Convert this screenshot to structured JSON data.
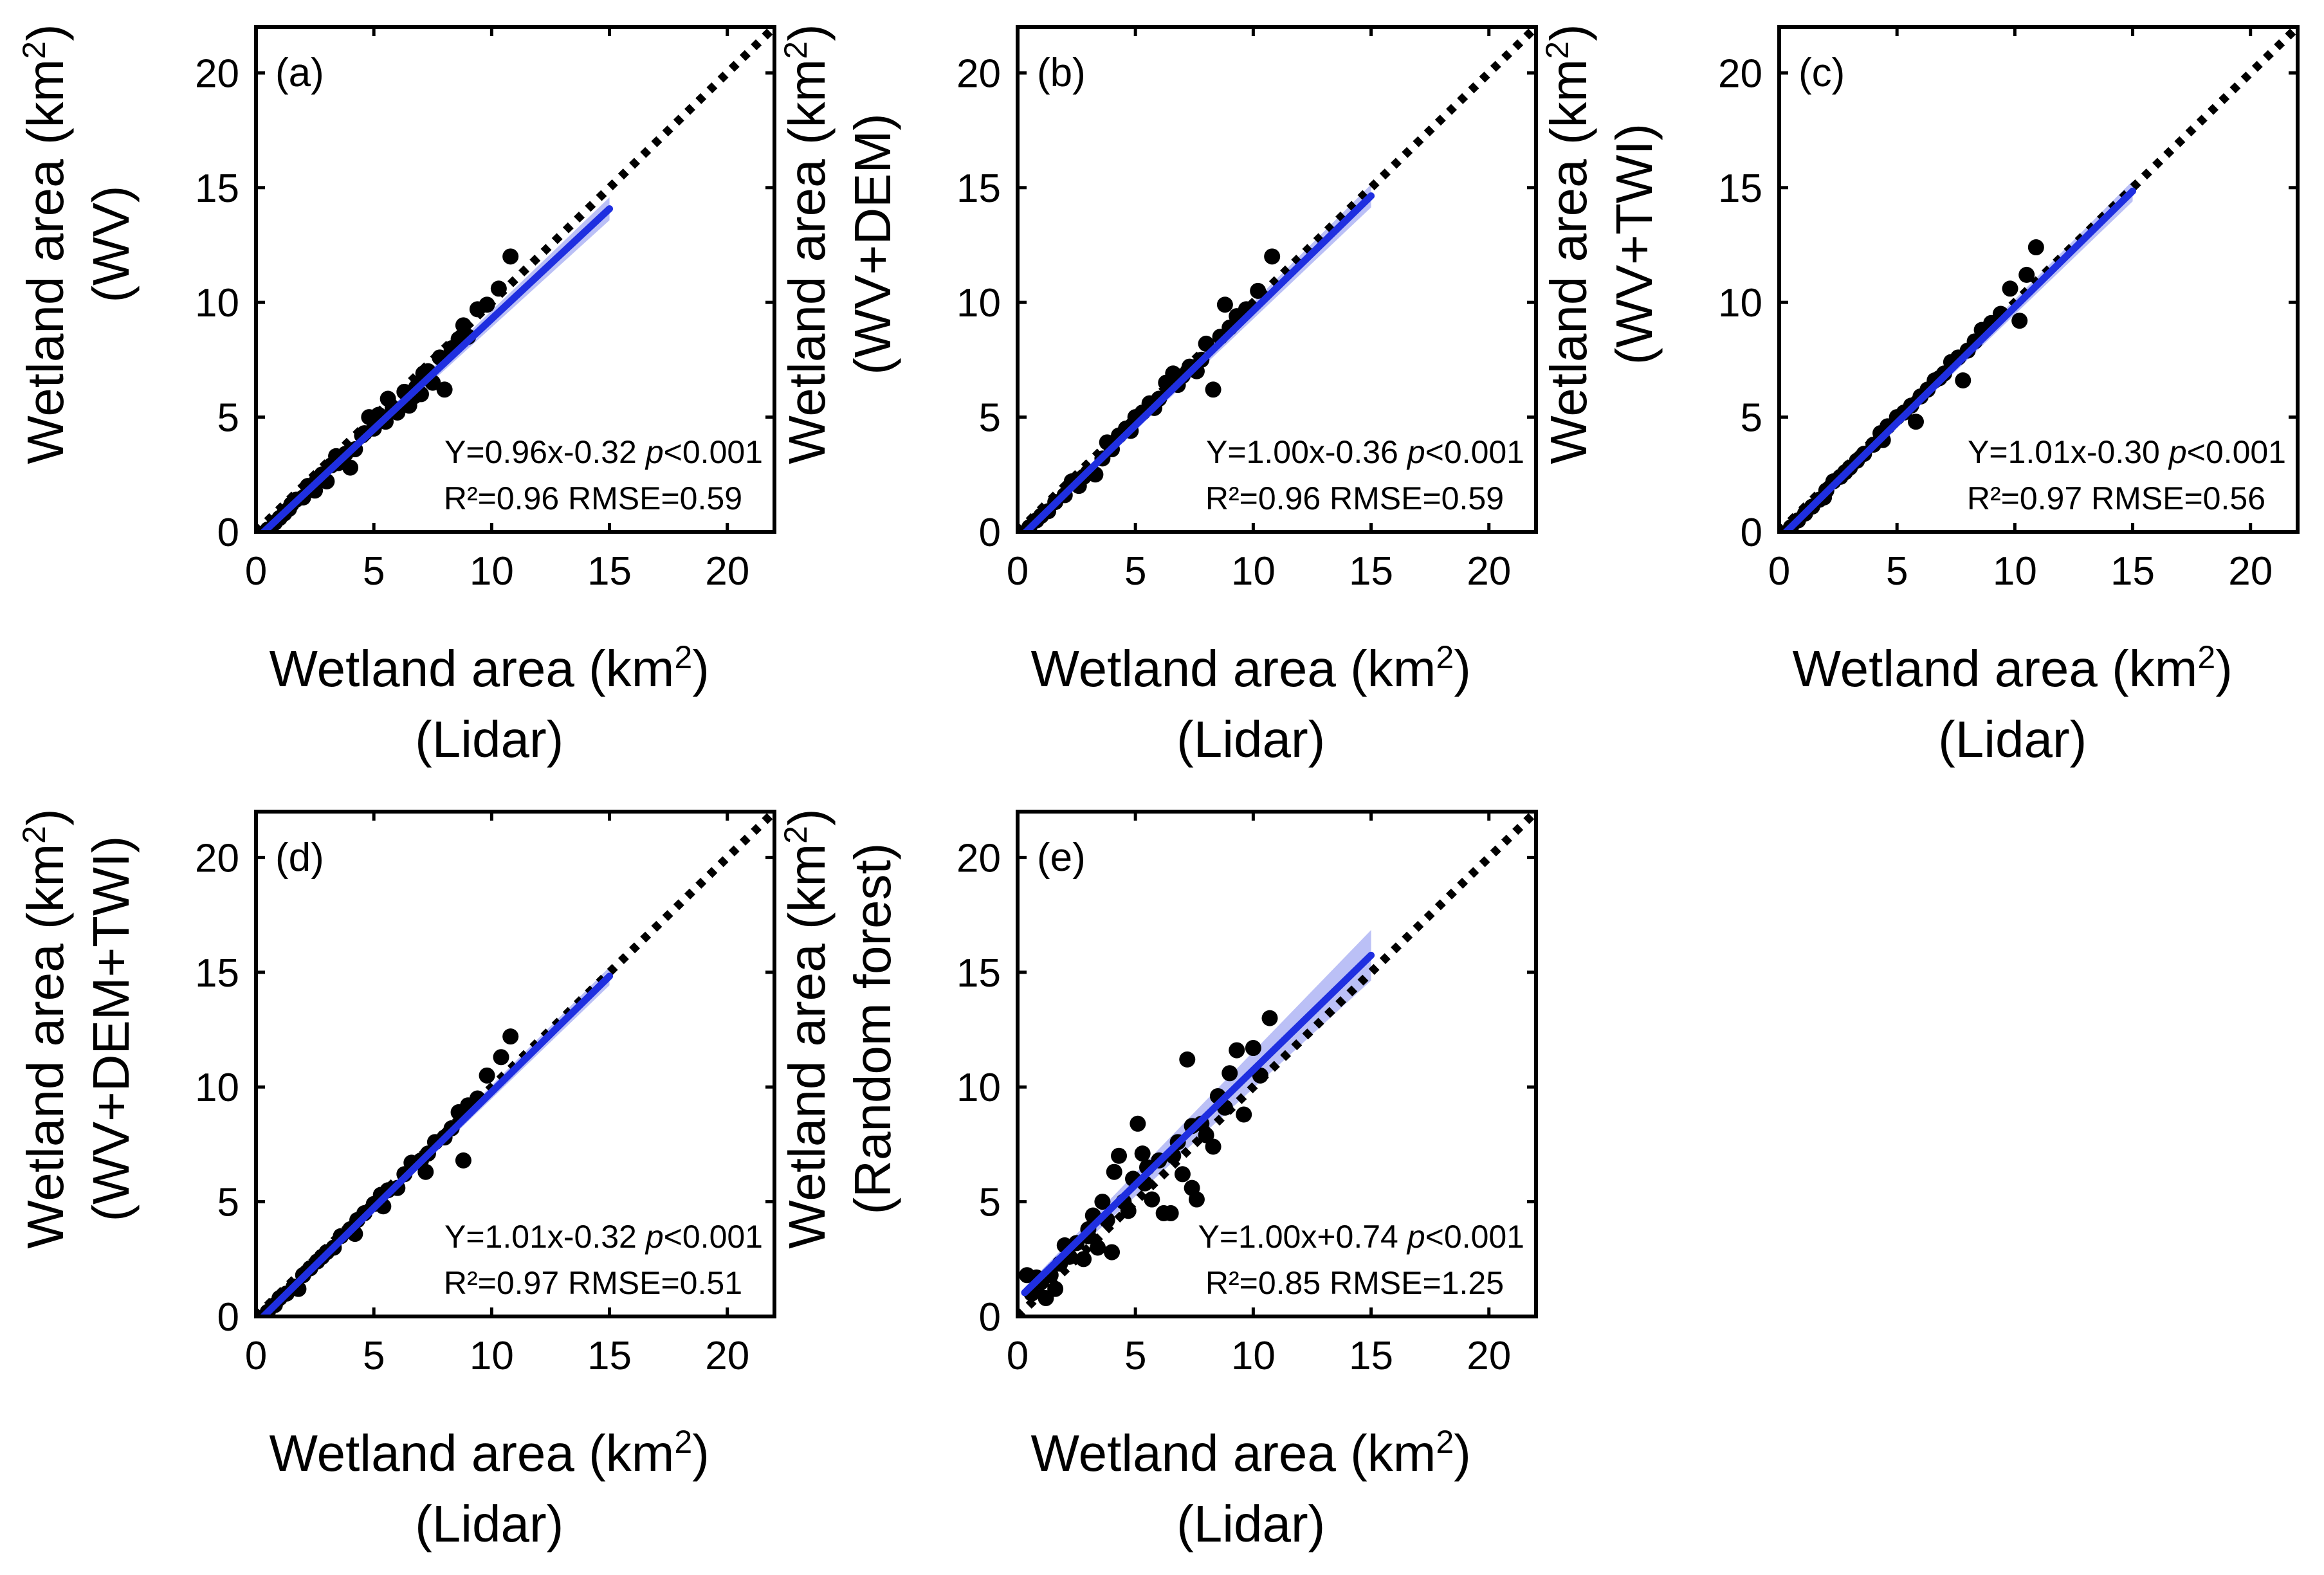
{
  "figure": {
    "y_label_line1": "Wetland area (km",
    "y_label_sup": "2",
    "y_label_close": ")",
    "x_label_line1": "Wetland area (km",
    "x_label_sup": "2",
    "x_label_close": ")",
    "x_label_line2": "(Lidar)"
  },
  "chart_data": [
    {
      "type": "scatter",
      "panel_label": "(a)",
      "ylabel_line2": "(WV)",
      "xlim": [
        0,
        22
      ],
      "ylim": [
        0,
        22
      ],
      "xticks": [
        0,
        5,
        10,
        15,
        20
      ],
      "yticks": [
        0,
        5,
        10,
        15,
        20
      ],
      "eq_text": "Y=0.96x-0.32",
      "p_label": "p",
      "p_text": "<0.001",
      "r2_text": "R²=0.96 RMSE=0.59",
      "fit": {
        "slope": 0.96,
        "intercept": -0.32,
        "x_range": [
          0.3,
          15
        ],
        "band": 0.5
      },
      "one_to_one": true,
      "series_color": "#1f2fe0",
      "points": [
        [
          0.5,
          0.1
        ],
        [
          0.8,
          0.4
        ],
        [
          1.0,
          0.6
        ],
        [
          1.2,
          0.8
        ],
        [
          1.5,
          1.2
        ],
        [
          1.7,
          1.4
        ],
        [
          2.0,
          1.5
        ],
        [
          2.2,
          2.0
        ],
        [
          2.5,
          1.8
        ],
        [
          2.8,
          2.5
        ],
        [
          3.0,
          2.2
        ],
        [
          3.2,
          2.9
        ],
        [
          3.5,
          3.0
        ],
        [
          3.8,
          3.4
        ],
        [
          4.0,
          2.8
        ],
        [
          4.2,
          3.6
        ],
        [
          4.5,
          4.2
        ],
        [
          4.8,
          5.0
        ],
        [
          5.0,
          4.5
        ],
        [
          5.2,
          5.1
        ],
        [
          5.5,
          4.8
        ],
        [
          5.8,
          5.4
        ],
        [
          6.0,
          5.2
        ],
        [
          6.3,
          6.1
        ],
        [
          6.5,
          5.5
        ],
        [
          6.8,
          6.3
        ],
        [
          7.0,
          6.0
        ],
        [
          7.3,
          7.0
        ],
        [
          7.5,
          6.5
        ],
        [
          7.8,
          7.6
        ],
        [
          8.0,
          6.2
        ],
        [
          8.3,
          8.0
        ],
        [
          8.6,
          8.4
        ],
        [
          8.8,
          9.0
        ],
        [
          9.0,
          8.5
        ],
        [
          9.4,
          9.7
        ],
        [
          9.8,
          9.9
        ],
        [
          10.3,
          10.6
        ],
        [
          10.8,
          12.0
        ],
        [
          3.4,
          3.3
        ],
        [
          4.6,
          4.3
        ],
        [
          6.7,
          5.9
        ],
        [
          2.6,
          2.3
        ],
        [
          1.4,
          1.0
        ],
        [
          5.6,
          5.8
        ],
        [
          7.1,
          6.9
        ]
      ]
    },
    {
      "type": "scatter",
      "panel_label": "(b)",
      "ylabel_line2": "(WV+DEM)",
      "xlim": [
        0,
        22
      ],
      "ylim": [
        0,
        22
      ],
      "xticks": [
        0,
        5,
        10,
        15,
        20
      ],
      "yticks": [
        0,
        5,
        10,
        15,
        20
      ],
      "eq_text": "Y=1.00x-0.36",
      "p_label": "p",
      "p_text": "<0.001",
      "r2_text": "R²=0.96 RMSE=0.59",
      "fit": {
        "slope": 1.0,
        "intercept": -0.36,
        "x_range": [
          0.3,
          15
        ],
        "band": 0.5
      },
      "one_to_one": true,
      "series_color": "#1f2fe0",
      "points": [
        [
          0.5,
          0.2
        ],
        [
          0.8,
          0.5
        ],
        [
          1.0,
          0.7
        ],
        [
          1.3,
          0.9
        ],
        [
          1.6,
          1.3
        ],
        [
          2.0,
          1.6
        ],
        [
          2.3,
          2.2
        ],
        [
          2.6,
          2.0
        ],
        [
          3.0,
          2.6
        ],
        [
          3.3,
          2.5
        ],
        [
          3.6,
          3.2
        ],
        [
          4.0,
          3.6
        ],
        [
          4.3,
          4.2
        ],
        [
          4.6,
          4.5
        ],
        [
          5.0,
          5.0
        ],
        [
          5.3,
          5.2
        ],
        [
          5.6,
          5.6
        ],
        [
          6.0,
          5.8
        ],
        [
          6.3,
          6.5
        ],
        [
          6.6,
          6.9
        ],
        [
          7.0,
          6.8
        ],
        [
          7.3,
          7.2
        ],
        [
          7.6,
          7.0
        ],
        [
          8.0,
          8.2
        ],
        [
          8.3,
          6.2
        ],
        [
          8.6,
          8.5
        ],
        [
          9.0,
          8.9
        ],
        [
          9.3,
          9.4
        ],
        [
          9.7,
          9.7
        ],
        [
          10.2,
          10.5
        ],
        [
          10.8,
          12.0
        ],
        [
          8.8,
          9.9
        ],
        [
          7.8,
          7.5
        ],
        [
          5.8,
          5.4
        ],
        [
          4.8,
          4.4
        ],
        [
          3.8,
          3.9
        ],
        [
          2.8,
          2.4
        ],
        [
          6.8,
          6.4
        ]
      ]
    },
    {
      "type": "scatter",
      "panel_label": "(c)",
      "ylabel_line2": "(WV+TWI)",
      "xlim": [
        0,
        22
      ],
      "ylim": [
        0,
        22
      ],
      "xticks": [
        0,
        5,
        10,
        15,
        20
      ],
      "yticks": [
        0,
        5,
        10,
        15,
        20
      ],
      "eq_text": "Y=1.01x-0.30",
      "p_label": "p",
      "p_text": "<0.001",
      "r2_text": "R²=0.97 RMSE=0.56",
      "fit": {
        "slope": 1.01,
        "intercept": -0.3,
        "x_range": [
          0.3,
          15
        ],
        "band": 0.45
      },
      "one_to_one": true,
      "series_color": "#1f2fe0",
      "points": [
        [
          0.5,
          0.2
        ],
        [
          0.8,
          0.5
        ],
        [
          1.1,
          0.8
        ],
        [
          1.4,
          1.1
        ],
        [
          1.7,
          1.4
        ],
        [
          2.0,
          1.8
        ],
        [
          2.3,
          2.2
        ],
        [
          2.6,
          2.4
        ],
        [
          3.0,
          2.8
        ],
        [
          3.3,
          3.1
        ],
        [
          3.6,
          3.4
        ],
        [
          4.0,
          3.8
        ],
        [
          4.3,
          4.3
        ],
        [
          4.6,
          4.6
        ],
        [
          5.0,
          5.0
        ],
        [
          5.3,
          5.2
        ],
        [
          5.6,
          5.5
        ],
        [
          6.0,
          5.9
        ],
        [
          6.3,
          6.2
        ],
        [
          6.6,
          6.6
        ],
        [
          7.0,
          6.9
        ],
        [
          7.3,
          7.4
        ],
        [
          7.6,
          7.6
        ],
        [
          8.0,
          7.9
        ],
        [
          8.3,
          8.3
        ],
        [
          8.6,
          8.8
        ],
        [
          9.0,
          9.1
        ],
        [
          9.4,
          9.5
        ],
        [
          9.8,
          10.6
        ],
        [
          10.5,
          11.2
        ],
        [
          10.9,
          12.4
        ],
        [
          10.2,
          9.2
        ],
        [
          7.8,
          6.6
        ],
        [
          5.8,
          4.8
        ],
        [
          4.4,
          4.0
        ],
        [
          2.8,
          2.6
        ],
        [
          1.9,
          1.5
        ],
        [
          6.8,
          6.7
        ]
      ]
    },
    {
      "type": "scatter",
      "panel_label": "(d)",
      "ylabel_line2": "(WV+DEM+TWI)",
      "xlim": [
        0,
        22
      ],
      "ylim": [
        0,
        22
      ],
      "xticks": [
        0,
        5,
        10,
        15,
        20
      ],
      "yticks": [
        0,
        5,
        10,
        15,
        20
      ],
      "eq_text": "Y=1.01x-0.32",
      "p_label": "p",
      "p_text": "<0.001",
      "r2_text": "R²=0.97 RMSE=0.51",
      "fit": {
        "slope": 1.01,
        "intercept": -0.32,
        "x_range": [
          0.3,
          15
        ],
        "band": 0.4
      },
      "one_to_one": true,
      "series_color": "#1f2fe0",
      "points": [
        [
          0.5,
          0.2
        ],
        [
          0.8,
          0.5
        ],
        [
          1.0,
          0.8
        ],
        [
          1.3,
          1.0
        ],
        [
          1.6,
          1.3
        ],
        [
          2.0,
          1.8
        ],
        [
          2.3,
          2.1
        ],
        [
          2.6,
          2.4
        ],
        [
          3.0,
          2.8
        ],
        [
          3.3,
          3.0
        ],
        [
          3.6,
          3.5
        ],
        [
          4.0,
          3.8
        ],
        [
          4.3,
          4.2
        ],
        [
          4.6,
          4.5
        ],
        [
          5.0,
          4.9
        ],
        [
          5.3,
          5.3
        ],
        [
          5.6,
          5.5
        ],
        [
          6.0,
          5.6
        ],
        [
          6.3,
          6.2
        ],
        [
          6.6,
          6.7
        ],
        [
          7.0,
          6.8
        ],
        [
          7.3,
          7.1
        ],
        [
          7.6,
          7.6
        ],
        [
          8.0,
          7.8
        ],
        [
          8.3,
          8.2
        ],
        [
          8.6,
          8.9
        ],
        [
          9.0,
          9.2
        ],
        [
          9.4,
          9.5
        ],
        [
          9.8,
          10.5
        ],
        [
          10.4,
          11.3
        ],
        [
          10.8,
          12.2
        ],
        [
          8.8,
          6.8
        ],
        [
          7.2,
          6.3
        ],
        [
          5.4,
          4.8
        ],
        [
          4.2,
          3.6
        ],
        [
          2.8,
          2.6
        ],
        [
          1.8,
          1.2
        ]
      ]
    },
    {
      "type": "scatter",
      "panel_label": "(e)",
      "ylabel_line2": "(Random forest)",
      "xlim": [
        0,
        22
      ],
      "ylim": [
        0,
        22
      ],
      "xticks": [
        0,
        5,
        10,
        15,
        20
      ],
      "yticks": [
        0,
        5,
        10,
        15,
        20
      ],
      "eq_text": "Y=1.00x+0.74",
      "p_label": "p",
      "p_text": "<0.001",
      "r2_text": "R²=0.85 RMSE=1.25",
      "fit": {
        "slope": 1.0,
        "intercept": 0.74,
        "x_range": [
          0.3,
          15
        ],
        "band": 1.1
      },
      "one_to_one": true,
      "series_color": "#1f2fe0",
      "points": [
        [
          0.4,
          1.8
        ],
        [
          0.6,
          1.0
        ],
        [
          0.8,
          1.7
        ],
        [
          1.0,
          1.5
        ],
        [
          1.2,
          0.8
        ],
        [
          1.4,
          1.8
        ],
        [
          1.6,
          1.2
        ],
        [
          1.8,
          2.3
        ],
        [
          2.0,
          3.1
        ],
        [
          2.2,
          2.6
        ],
        [
          2.5,
          3.2
        ],
        [
          2.8,
          2.5
        ],
        [
          3.0,
          3.5
        ],
        [
          3.2,
          4.4
        ],
        [
          3.4,
          3.0
        ],
        [
          3.6,
          5.0
        ],
        [
          3.8,
          4.2
        ],
        [
          4.0,
          2.8
        ],
        [
          4.1,
          6.3
        ],
        [
          4.3,
          7.0
        ],
        [
          4.5,
          5.0
        ],
        [
          4.7,
          4.6
        ],
        [
          4.9,
          6.0
        ],
        [
          5.1,
          8.4
        ],
        [
          5.3,
          7.1
        ],
        [
          5.5,
          6.5
        ],
        [
          5.7,
          5.1
        ],
        [
          6.0,
          6.8
        ],
        [
          6.2,
          4.5
        ],
        [
          6.5,
          4.5
        ],
        [
          6.8,
          7.6
        ],
        [
          7.0,
          6.2
        ],
        [
          7.2,
          11.2
        ],
        [
          7.4,
          5.6
        ],
        [
          7.6,
          5.1
        ],
        [
          7.8,
          8.4
        ],
        [
          8.0,
          7.9
        ],
        [
          8.3,
          7.4
        ],
        [
          8.5,
          9.6
        ],
        [
          8.8,
          9.1
        ],
        [
          9.0,
          10.6
        ],
        [
          9.3,
          11.6
        ],
        [
          9.6,
          8.8
        ],
        [
          10.0,
          11.7
        ],
        [
          10.3,
          10.5
        ],
        [
          10.7,
          13.0
        ],
        [
          7.4,
          8.3
        ],
        [
          5.4,
          5.8
        ],
        [
          6.6,
          7.0
        ],
        [
          3.0,
          3.8
        ]
      ]
    }
  ]
}
